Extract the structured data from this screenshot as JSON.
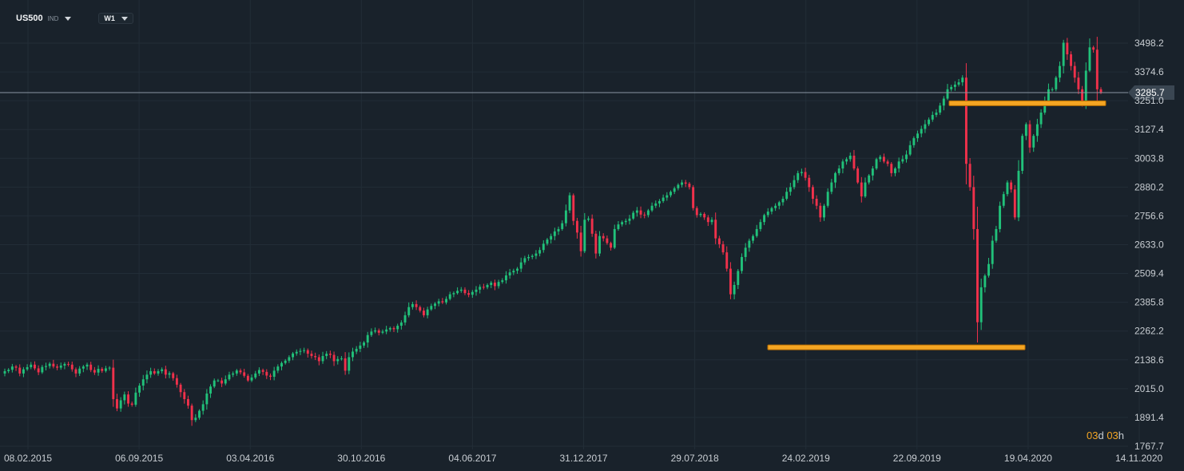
{
  "toolbar": {
    "symbol": "US500",
    "symbol_type": "IND",
    "timeframe": "W1"
  },
  "countdown": {
    "days": "03",
    "d_label": "d",
    "hours": "03",
    "h_label": "h"
  },
  "colors": {
    "background": "#19222b",
    "grid": "#222d37",
    "up": "#21c17a",
    "down": "#f0314b",
    "level": "#f5a623",
    "price_line": "#8a97a3",
    "axis_text": "#c8cdd2"
  },
  "chart_data": {
    "type": "candlestick",
    "symbol": "US500",
    "interval": "W1",
    "price_axis_ticks": [
      "3498.2",
      "3374.6",
      "3251.0",
      "3127.4",
      "3003.8",
      "2880.2",
      "2756.6",
      "2633.0",
      "2509.4",
      "2385.8",
      "2262.2",
      "2138.6",
      "2015.0",
      "1891.4",
      "1767.7"
    ],
    "time_axis_ticks": [
      "08.02.2015",
      "06.09.2015",
      "03.04.2016",
      "30.10.2016",
      "04.06.2017",
      "31.12.2017",
      "29.07.2018",
      "24.02.2019",
      "22.09.2019",
      "19.04.2020",
      "14.11.2020"
    ],
    "current_price": 3285.7,
    "ylim": [
      1767.7,
      3498.2
    ],
    "horizontal_levels": [
      {
        "price": 3240,
        "from": "22.09.2019",
        "to": "14.11.2020"
      },
      {
        "price": 2192,
        "from": "24.02.2019",
        "to": "19.04.2020"
      }
    ],
    "weekly_closes": [
      2090,
      2096,
      2110,
      2105,
      2080,
      2098,
      2107,
      2118,
      2102,
      2085,
      2108,
      2112,
      2122,
      2110,
      2105,
      2114,
      2121,
      2118,
      2098,
      2080,
      2101,
      2110,
      2118,
      2095,
      2084,
      2100,
      2091,
      2102,
      2105,
      1970,
      1930,
      1965,
      1990,
      1951,
      1946,
      1998,
      2028,
      2055,
      2075,
      2090,
      2080,
      2090,
      2098,
      2075,
      2081,
      2060,
      2032,
      2000,
      1970,
      1942,
      1880,
      1890,
      1920,
      1948,
      1994,
      2024,
      2050,
      2050,
      2037,
      2055,
      2075,
      2080,
      2093,
      2085,
      2070,
      2050,
      2063,
      2080,
      2095,
      2087,
      2071,
      2066,
      2092,
      2110,
      2125,
      2135,
      2150,
      2166,
      2173,
      2177,
      2180,
      2165,
      2155,
      2150,
      2133,
      2155,
      2165,
      2160,
      2133,
      2142,
      2145,
      2092,
      2150,
      2174,
      2186,
      2200,
      2213,
      2245,
      2260,
      2265,
      2255,
      2260,
      2269,
      2275,
      2270,
      2285,
      2299,
      2330,
      2365,
      2378,
      2365,
      2350,
      2330,
      2355,
      2370,
      2380,
      2390,
      2385,
      2400,
      2420,
      2425,
      2435,
      2440,
      2425,
      2418,
      2430,
      2440,
      2452,
      2450,
      2460,
      2470,
      2455,
      2473,
      2480,
      2501,
      2514,
      2521,
      2530,
      2557,
      2575,
      2580,
      2585,
      2595,
      2610,
      2637,
      2655,
      2670,
      2690,
      2700,
      2725,
      2780,
      2845,
      2735,
      2685,
      2605,
      2740,
      2745,
      2680,
      2595,
      2670,
      2660,
      2640,
      2620,
      2700,
      2720,
      2730,
      2735,
      2745,
      2770,
      2780,
      2762,
      2760,
      2780,
      2800,
      2810,
      2820,
      2835,
      2845,
      2860,
      2875,
      2890,
      2900,
      2895,
      2880,
      2790,
      2760,
      2765,
      2750,
      2730,
      2740,
      2660,
      2635,
      2600,
      2530,
      2420,
      2460,
      2520,
      2580,
      2620,
      2650,
      2670,
      2700,
      2730,
      2760,
      2775,
      2790,
      2800,
      2815,
      2830,
      2860,
      2880,
      2910,
      2940,
      2945,
      2920,
      2880,
      2830,
      2800,
      2750,
      2800,
      2860,
      2900,
      2940,
      2960,
      2990,
      3000,
      3015,
      2960,
      2900,
      2840,
      2900,
      2930,
      2960,
      3000,
      3010,
      2990,
      2980,
      2940,
      2960,
      2990,
      3000,
      3020,
      3060,
      3090,
      3110,
      3130,
      3150,
      3170,
      3190,
      3200,
      3230,
      3260,
      3300,
      3310,
      3320,
      3330,
      3350,
      2980,
      2880,
      2700,
      2300,
      2450,
      2500,
      2550,
      2650,
      2700,
      2800,
      2850,
      2900,
      2870,
      2750,
      2950,
      3100,
      3150,
      3050,
      3100,
      3150,
      3200,
      3250,
      3300,
      3300,
      3350,
      3400,
      3500,
      3450,
      3400,
      3350,
      3300,
      3250,
      3380,
      3480,
      3470,
      3300,
      3286
    ]
  }
}
